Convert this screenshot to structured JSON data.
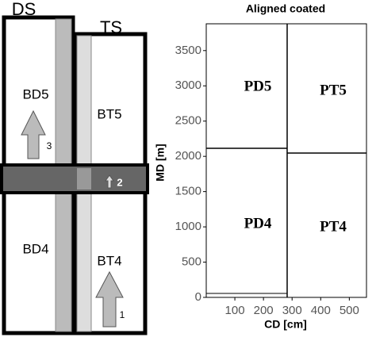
{
  "diagram": {
    "columns": [
      {
        "label": "DS",
        "upper": "BD5",
        "lower": "BD4"
      },
      {
        "label": "TS",
        "upper": "BT5",
        "lower": "BT4"
      }
    ],
    "arrows": [
      "3",
      "2",
      "1"
    ]
  },
  "plot": {
    "title": "Aligned coated",
    "ylabel": "MD [m]",
    "xlabel": "CD [cm]",
    "ylim": [
      0,
      3880
    ],
    "yticks": [
      0,
      500,
      1000,
      1500,
      2000,
      2500,
      3000,
      3500
    ],
    "xlim": [
      0,
      560
    ],
    "xticks": [
      100,
      200,
      300,
      400,
      500
    ],
    "regions": [
      "PD5",
      "PT5",
      "PD4",
      "PT4"
    ]
  }
}
